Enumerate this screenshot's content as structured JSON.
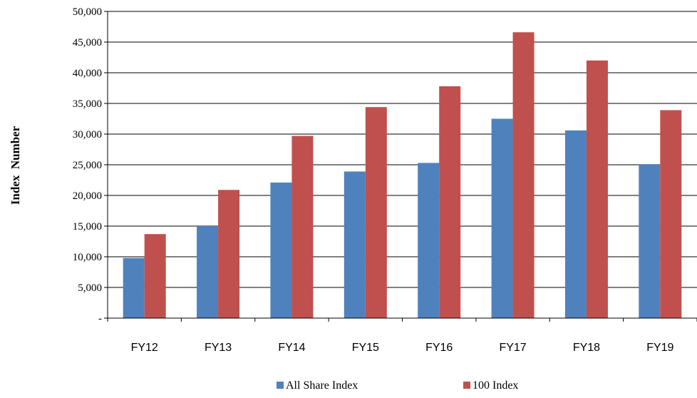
{
  "chart_data": {
    "type": "bar",
    "title": "",
    "xlabel": "",
    "ylabel": "Index  Number",
    "categories": [
      "FY12",
      "FY13",
      "FY14",
      "FY15",
      "FY16",
      "FY17",
      "FY18",
      "FY19"
    ],
    "series": [
      {
        "name": "All Share Index",
        "color": "#4F81BD",
        "values": [
          9800,
          15000,
          22100,
          23900,
          25300,
          32500,
          30600,
          25100
        ]
      },
      {
        "name": "100 Index",
        "color": "#C0504D",
        "values": [
          13700,
          20900,
          29700,
          34400,
          37800,
          46600,
          42000,
          33900
        ]
      }
    ],
    "ylim": [
      0,
      50000
    ],
    "yticks": [
      0,
      5000,
      10000,
      15000,
      20000,
      25000,
      30000,
      35000,
      40000,
      45000,
      50000
    ],
    "ytick_labels": [
      "-",
      "5,000",
      "10,000",
      "15,000",
      "20,000",
      "25,000",
      "30,000",
      "35,000",
      "40,000",
      "45,000",
      "50,000"
    ],
    "grid": true,
    "legend_position": "bottom"
  }
}
